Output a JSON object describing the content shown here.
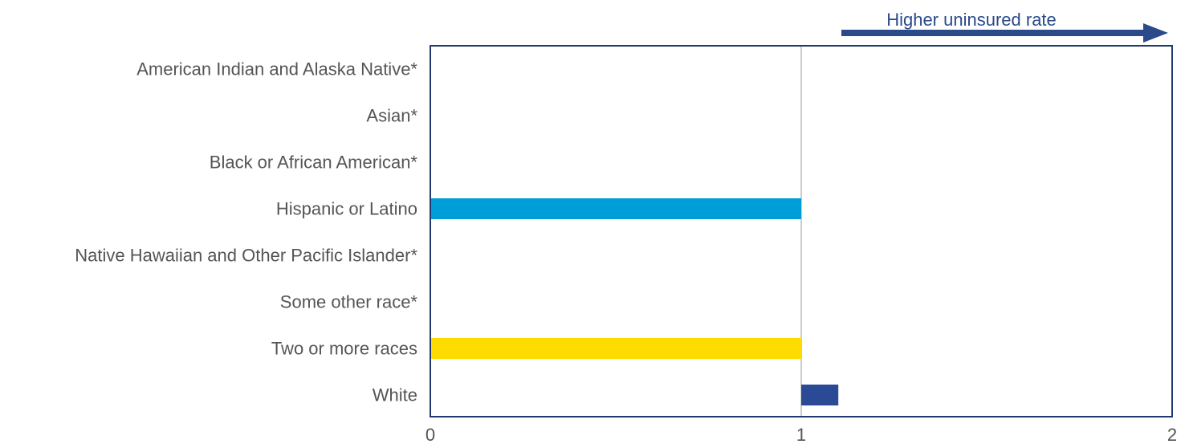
{
  "chart_data": {
    "type": "bar",
    "orientation": "horizontal",
    "title": "",
    "xlabel": "",
    "ylabel": "",
    "xlim": [
      0,
      2
    ],
    "x_ticks": [
      "0",
      "1",
      "2"
    ],
    "reference_line": 1,
    "annotation": "Higher uninsured rate",
    "categories": [
      "American Indian and Alaska Native*",
      "Asian*",
      "Black or African American*",
      "Hispanic or Latino",
      "Native Hawaiian and Other Pacific Islander*",
      "Some other race*",
      "Two or more races",
      "White"
    ],
    "bars": [
      {
        "category": "Hispanic or Latino",
        "start": 0,
        "end": 1.0,
        "color": "#009ed8"
      },
      {
        "category": "Two or more races",
        "start": 0,
        "end": 1.0,
        "color": "#ffdc00"
      },
      {
        "category": "White",
        "start": 1.0,
        "end": 1.1,
        "color": "#2a4a96"
      }
    ],
    "colors": {
      "axis_frame": "#1f3a6e",
      "reference_line": "#cccccc",
      "arrow": "#2a4a8c",
      "label_text": "#555555",
      "annotation_text": "#2a4a8c"
    }
  }
}
